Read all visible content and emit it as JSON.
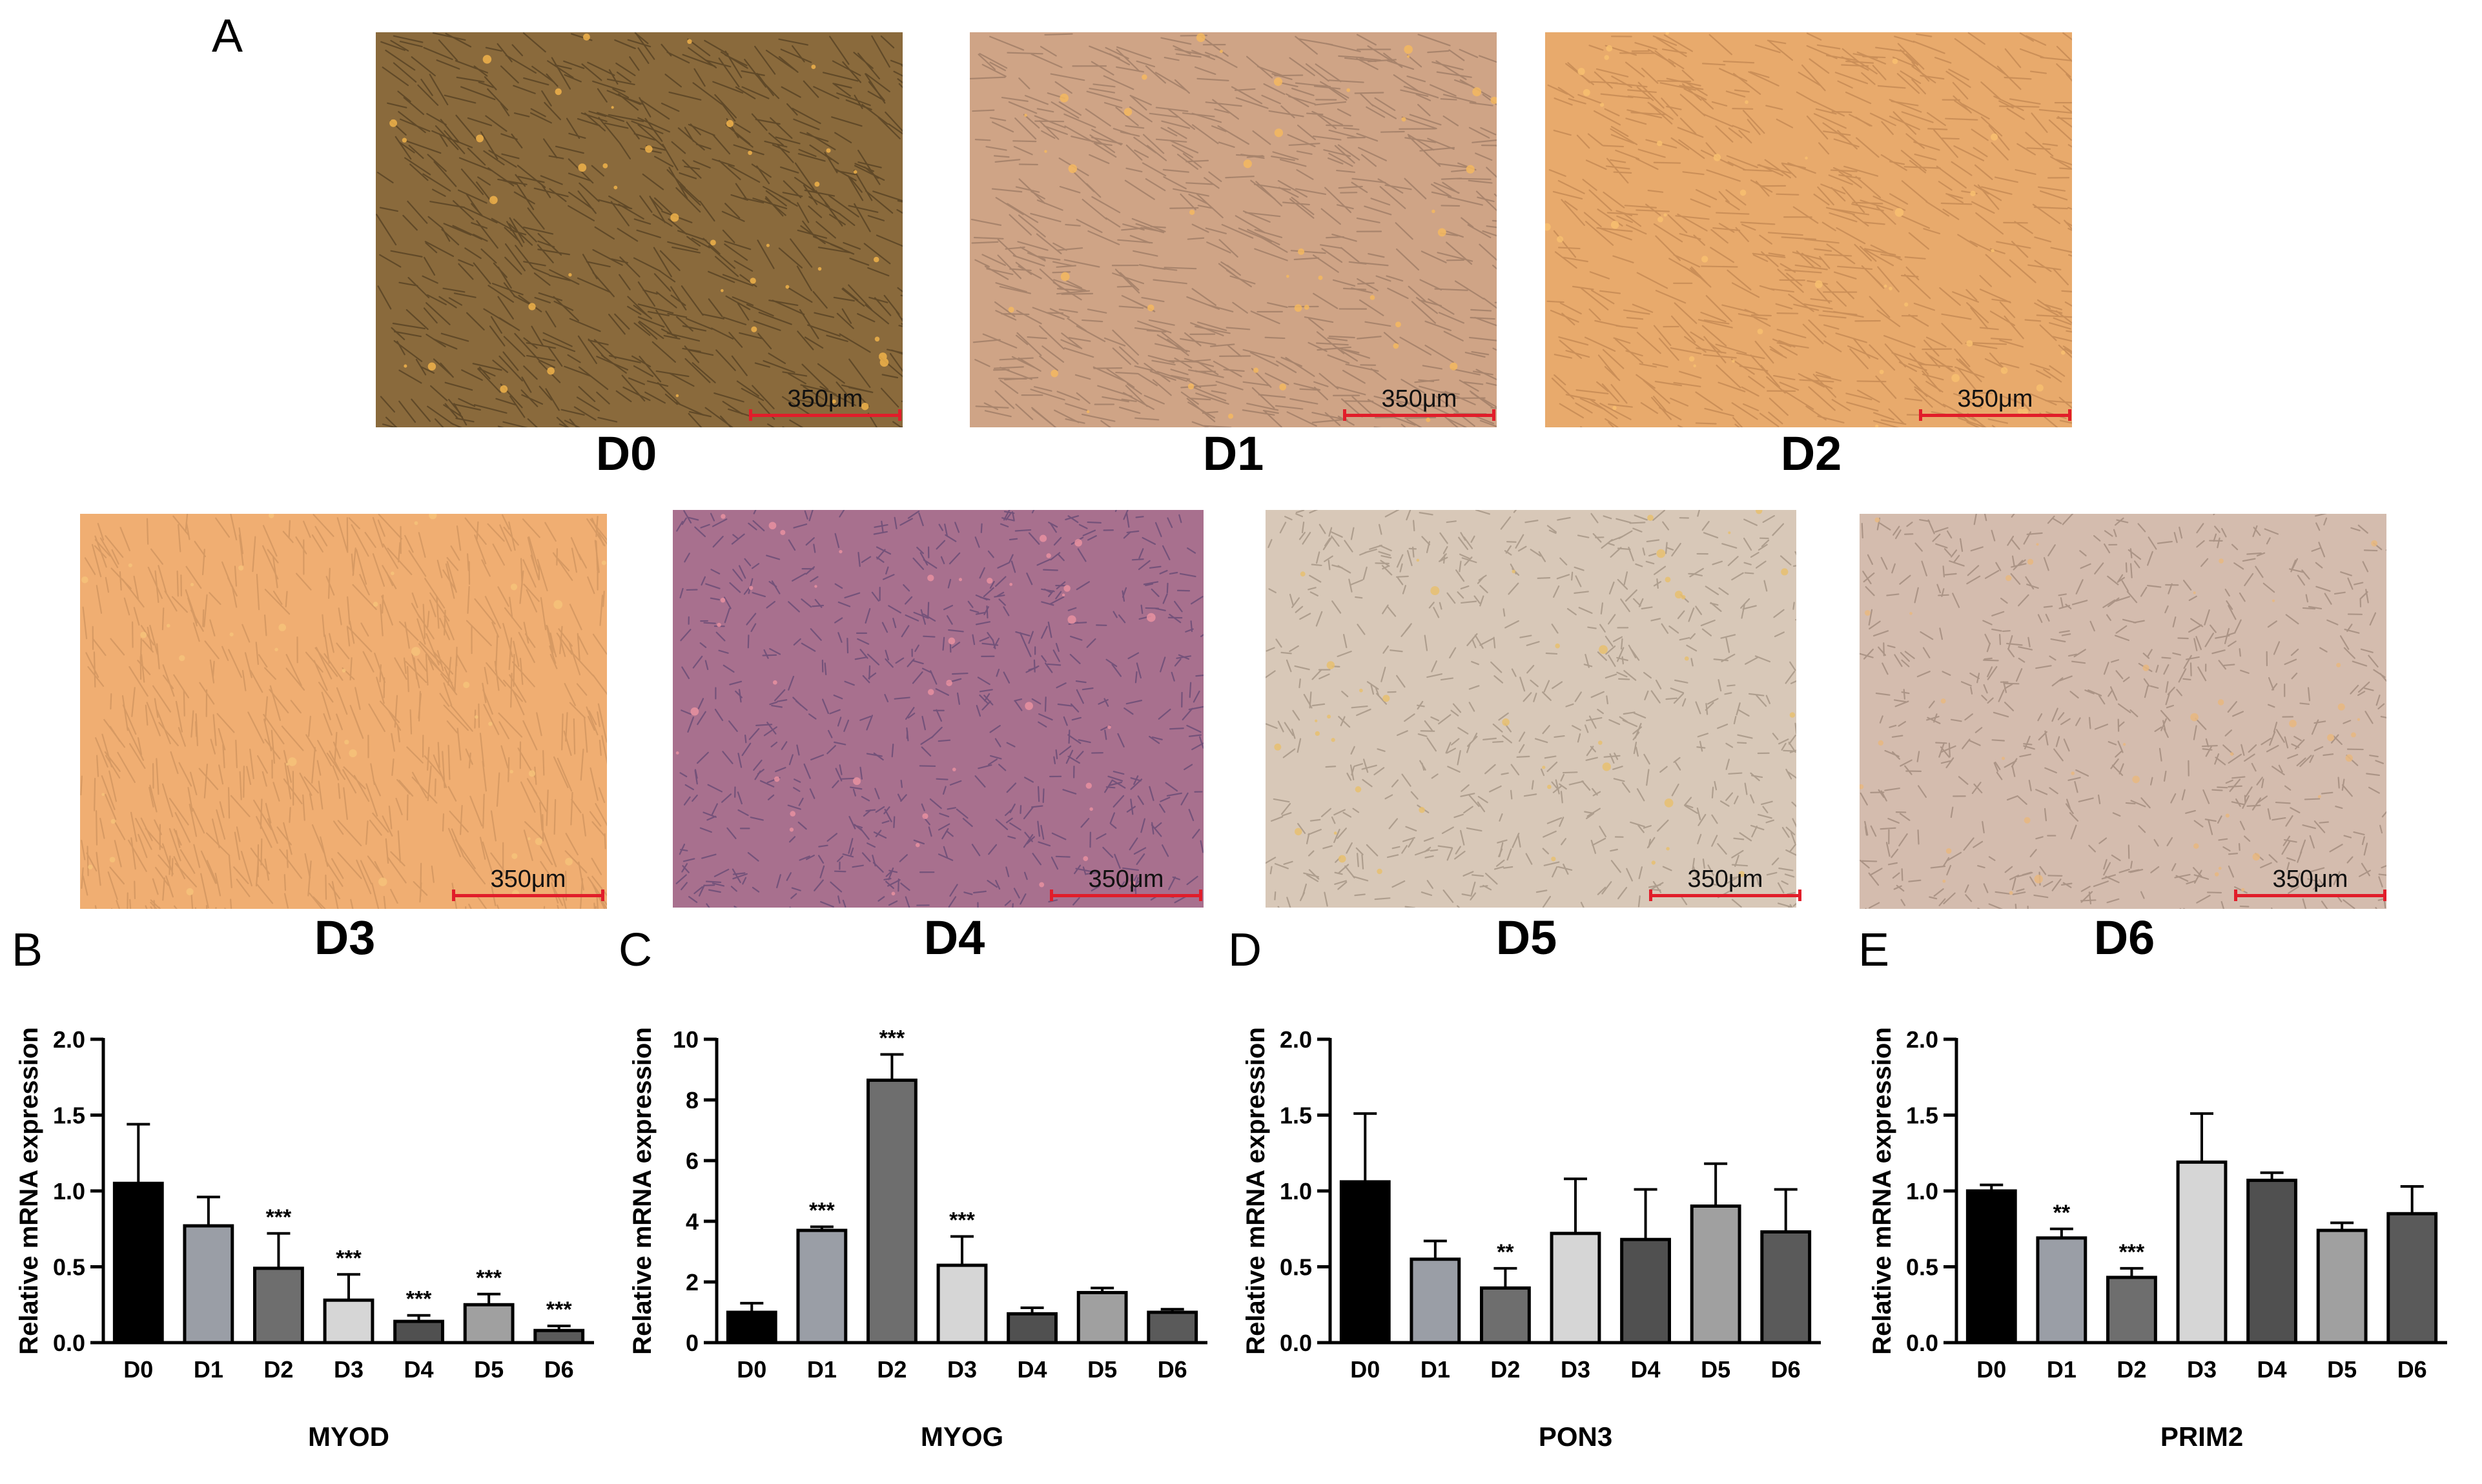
{
  "figure": {
    "panel_letters": [
      "A",
      "B",
      "C",
      "D",
      "E"
    ],
    "micrographs": [
      {
        "day": "D0",
        "scale_bar": "350μm",
        "base_color": "#8a6a3c",
        "stroke_color": "#3f2f18",
        "spot_color": "#f0b24a"
      },
      {
        "day": "D1",
        "scale_bar": "350μm",
        "base_color": "#cfa486",
        "stroke_color": "#8a6a58",
        "spot_color": "#f4b860"
      },
      {
        "day": "D2",
        "scale_bar": "350μm",
        "base_color": "#e8aa6c",
        "stroke_color": "#b47a48",
        "spot_color": "#f8c070"
      },
      {
        "day": "D3",
        "scale_bar": "350μm",
        "base_color": "#f0ae72",
        "stroke_color": "#c48a58",
        "spot_color": "#f6c27a"
      },
      {
        "day": "D4",
        "scale_bar": "350μm",
        "base_color": "#a8708e",
        "stroke_color": "#4a3a6a",
        "spot_color": "#e890a0"
      },
      {
        "day": "D5",
        "scale_bar": "350μm",
        "base_color": "#d8c8b8",
        "stroke_color": "#8c7c6c",
        "spot_color": "#e8c070"
      },
      {
        "day": "D6",
        "scale_bar": "350μm",
        "base_color": "#d4bcae",
        "stroke_color": "#8a7466",
        "spot_color": "#e8b880"
      }
    ]
  },
  "chart_data": [
    {
      "type": "bar",
      "panel": "B",
      "categories": [
        "D0",
        "D1",
        "D2",
        "D3",
        "D4",
        "D5",
        "D6"
      ],
      "values": [
        1.05,
        0.77,
        0.49,
        0.28,
        0.14,
        0.25,
        0.08
      ],
      "errors": [
        0.39,
        0.19,
        0.23,
        0.17,
        0.04,
        0.07,
        0.03
      ],
      "significance": [
        "",
        "",
        "***",
        "***",
        "***",
        "***",
        "***"
      ],
      "colors": [
        "#000000",
        "#9a9ea6",
        "#6e6e6e",
        "#d6d6d6",
        "#505050",
        "#a0a0a0",
        "#5a5a5a"
      ],
      "title": "",
      "xlabel": "MYOD",
      "ylabel": "Relative mRNA expression",
      "ylim": [
        0,
        2.0
      ],
      "yticks": [
        "0.0",
        "0.5",
        "1.0",
        "1.5",
        "2.0"
      ]
    },
    {
      "type": "bar",
      "panel": "C",
      "categories": [
        "D0",
        "D1",
        "D2",
        "D3",
        "D4",
        "D5",
        "D6"
      ],
      "values": [
        1.0,
        3.7,
        8.65,
        2.55,
        0.95,
        1.65,
        1.0
      ],
      "errors": [
        0.3,
        0.12,
        0.85,
        0.95,
        0.2,
        0.15,
        0.1
      ],
      "significance": [
        "",
        "***",
        "***",
        "***",
        "",
        "",
        ""
      ],
      "colors": [
        "#000000",
        "#9a9ea6",
        "#6e6e6e",
        "#d6d6d6",
        "#505050",
        "#a0a0a0",
        "#5a5a5a"
      ],
      "title": "",
      "xlabel": "MYOG",
      "ylabel": "Relative mRNA expression",
      "ylim": [
        0,
        10
      ],
      "yticks": [
        "0",
        "2",
        "4",
        "6",
        "8",
        "10"
      ]
    },
    {
      "type": "bar",
      "panel": "D",
      "categories": [
        "D0",
        "D1",
        "D2",
        "D3",
        "D4",
        "D5",
        "D6"
      ],
      "values": [
        1.06,
        0.55,
        0.36,
        0.72,
        0.68,
        0.9,
        0.73
      ],
      "errors": [
        0.45,
        0.12,
        0.13,
        0.36,
        0.33,
        0.28,
        0.28
      ],
      "significance": [
        "",
        "",
        "**",
        "",
        "",
        "",
        ""
      ],
      "colors": [
        "#000000",
        "#9a9ea6",
        "#6e6e6e",
        "#d6d6d6",
        "#505050",
        "#a0a0a0",
        "#5a5a5a"
      ],
      "title": "",
      "xlabel": "PON3",
      "ylabel": "Relative mRNA expression",
      "ylim": [
        0,
        2.0
      ],
      "yticks": [
        "0.0",
        "0.5",
        "1.0",
        "1.5",
        "2.0"
      ]
    },
    {
      "type": "bar",
      "panel": "E",
      "categories": [
        "D0",
        "D1",
        "D2",
        "D3",
        "D4",
        "D5",
        "D6"
      ],
      "values": [
        1.0,
        0.69,
        0.43,
        1.19,
        1.07,
        0.74,
        0.85
      ],
      "errors": [
        0.04,
        0.06,
        0.06,
        0.32,
        0.05,
        0.05,
        0.18
      ],
      "significance": [
        "",
        "**",
        "***",
        "",
        "",
        "",
        ""
      ],
      "colors": [
        "#000000",
        "#9a9ea6",
        "#6e6e6e",
        "#d6d6d6",
        "#505050",
        "#a0a0a0",
        "#5a5a5a"
      ],
      "title": "",
      "xlabel": "PRIM2",
      "ylabel": "Relative mRNA expression",
      "ylim": [
        0,
        2.0
      ],
      "yticks": [
        "0.0",
        "0.5",
        "1.0",
        "1.5",
        "2.0"
      ]
    }
  ]
}
